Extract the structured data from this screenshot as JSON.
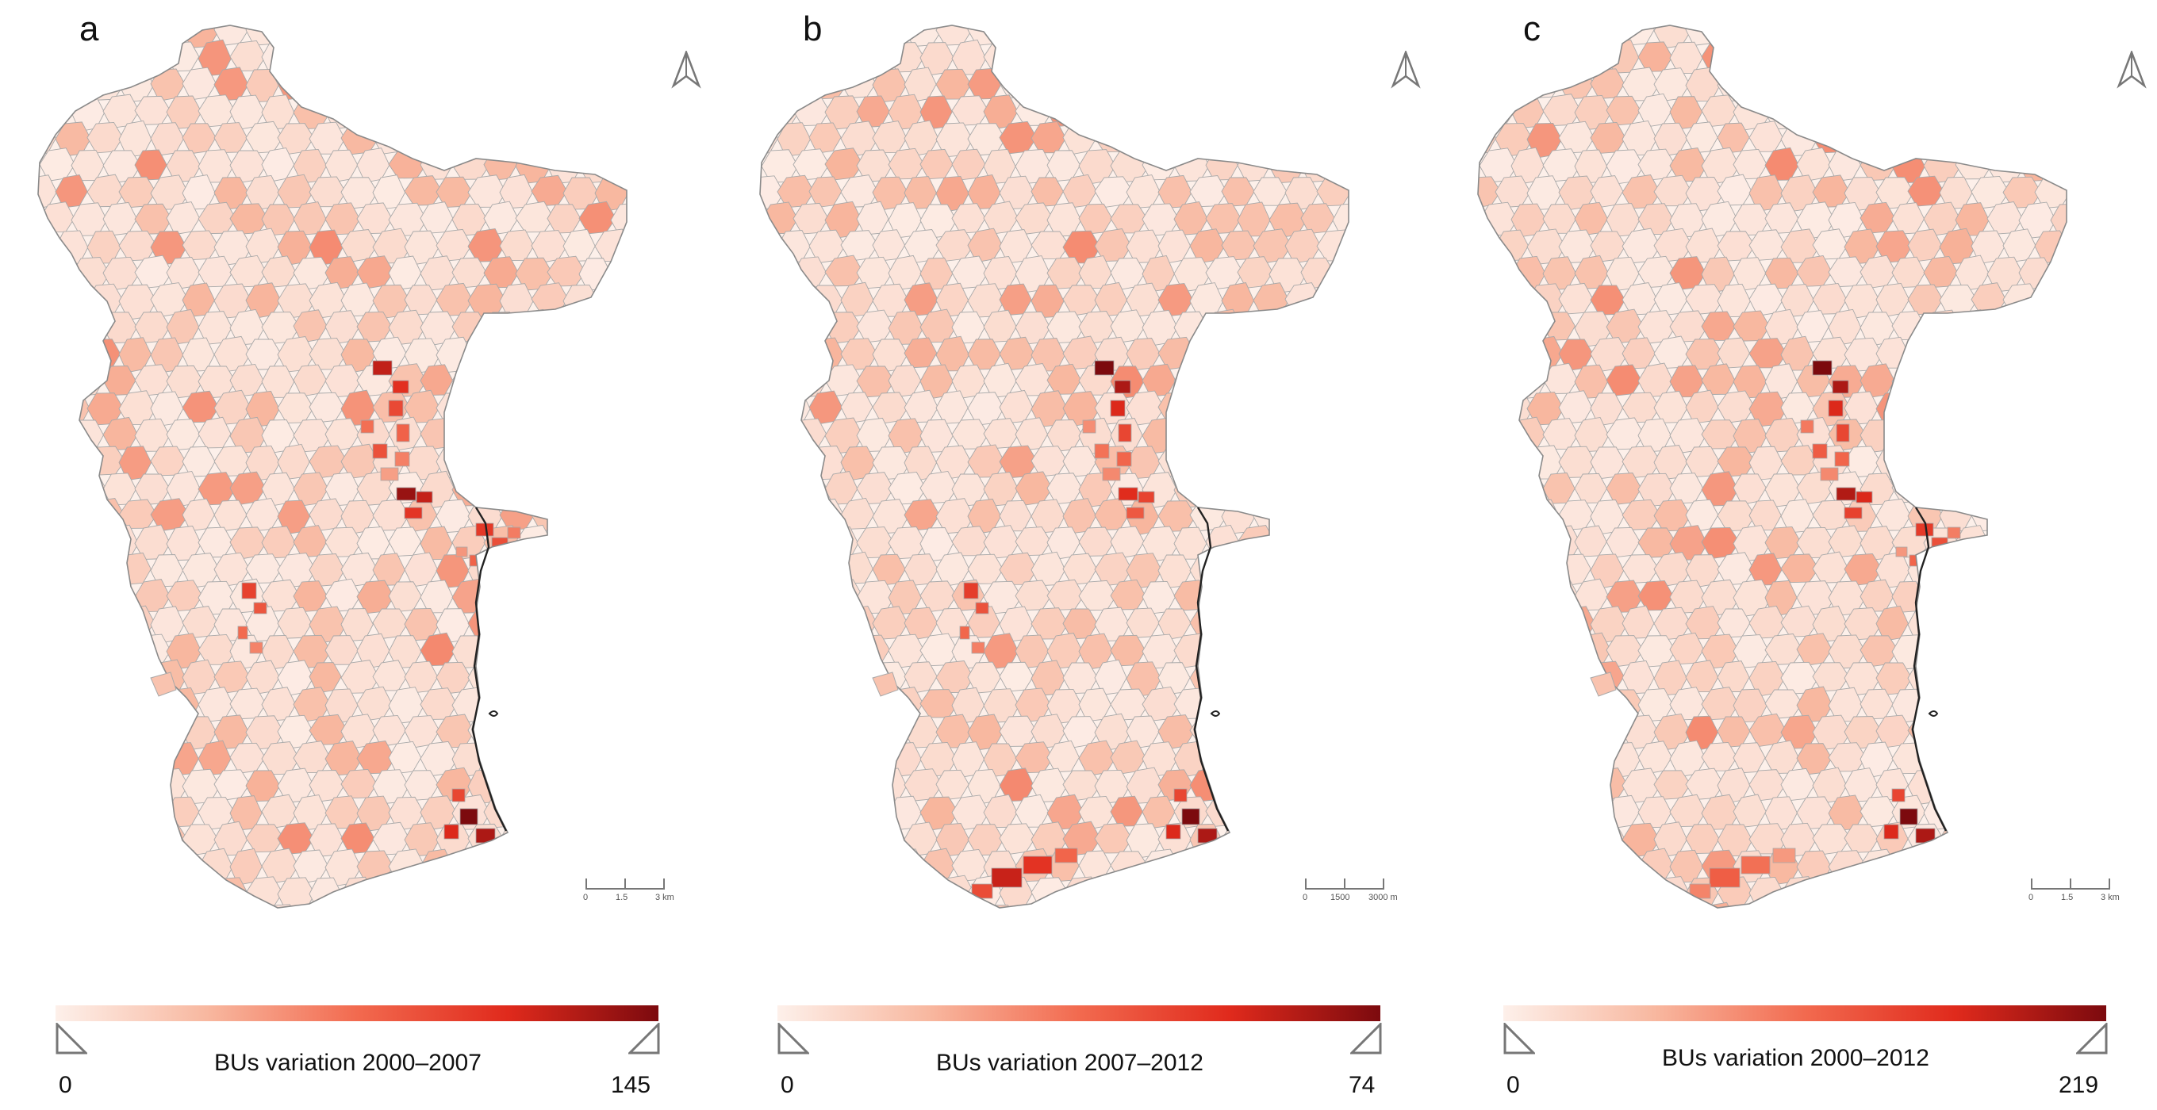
{
  "panels": [
    {
      "id": "a",
      "letter": "a",
      "legend": {
        "title": "BUs variation 2000–2007",
        "min": "0",
        "max": "145",
        "max_value": 145
      },
      "scalebar": {
        "labels": [
          "0",
          "1.5",
          "3 km"
        ]
      },
      "hotspots": [
        {
          "region": "north-center-strip",
          "value": 120
        },
        {
          "region": "center-east-strip",
          "value": 135
        },
        {
          "region": "east-coast",
          "value": 100
        },
        {
          "region": "south-east-coast",
          "value": 145
        },
        {
          "region": "south-west",
          "value": 95
        }
      ]
    },
    {
      "id": "b",
      "letter": "b",
      "legend": {
        "title": "BUs variation 2007–2012",
        "min": "0",
        "max": "74",
        "max_value": 74
      },
      "scalebar": {
        "labels": [
          "0",
          "1500",
          "3000 m"
        ]
      },
      "hotspots": [
        {
          "region": "north-center-strip",
          "value": 74
        },
        {
          "region": "center-east-strip",
          "value": 55
        },
        {
          "region": "south-east-coast",
          "value": 74
        },
        {
          "region": "south-tip",
          "value": 60
        },
        {
          "region": "south-west",
          "value": 50
        }
      ]
    },
    {
      "id": "c",
      "letter": "c",
      "legend": {
        "title": "BUs variation 2000–2012",
        "min": "0",
        "max": "219",
        "max_value": 219
      },
      "scalebar": {
        "labels": [
          "0",
          "1.5",
          "3 km"
        ]
      },
      "hotspots": [
        {
          "region": "north-center-strip",
          "value": 219
        },
        {
          "region": "center-east-strip",
          "value": 190
        },
        {
          "region": "east-coast",
          "value": 150
        },
        {
          "region": "south-east-coast",
          "value": 219
        },
        {
          "region": "south-tip",
          "value": 120
        }
      ]
    }
  ],
  "colors": {
    "ramp": [
      "#fdf0ea",
      "#f8b8a0",
      "#f26a4f",
      "#e02a1c",
      "#7c0a0e"
    ],
    "border": "#a9a9a9",
    "coast": "#222222"
  }
}
